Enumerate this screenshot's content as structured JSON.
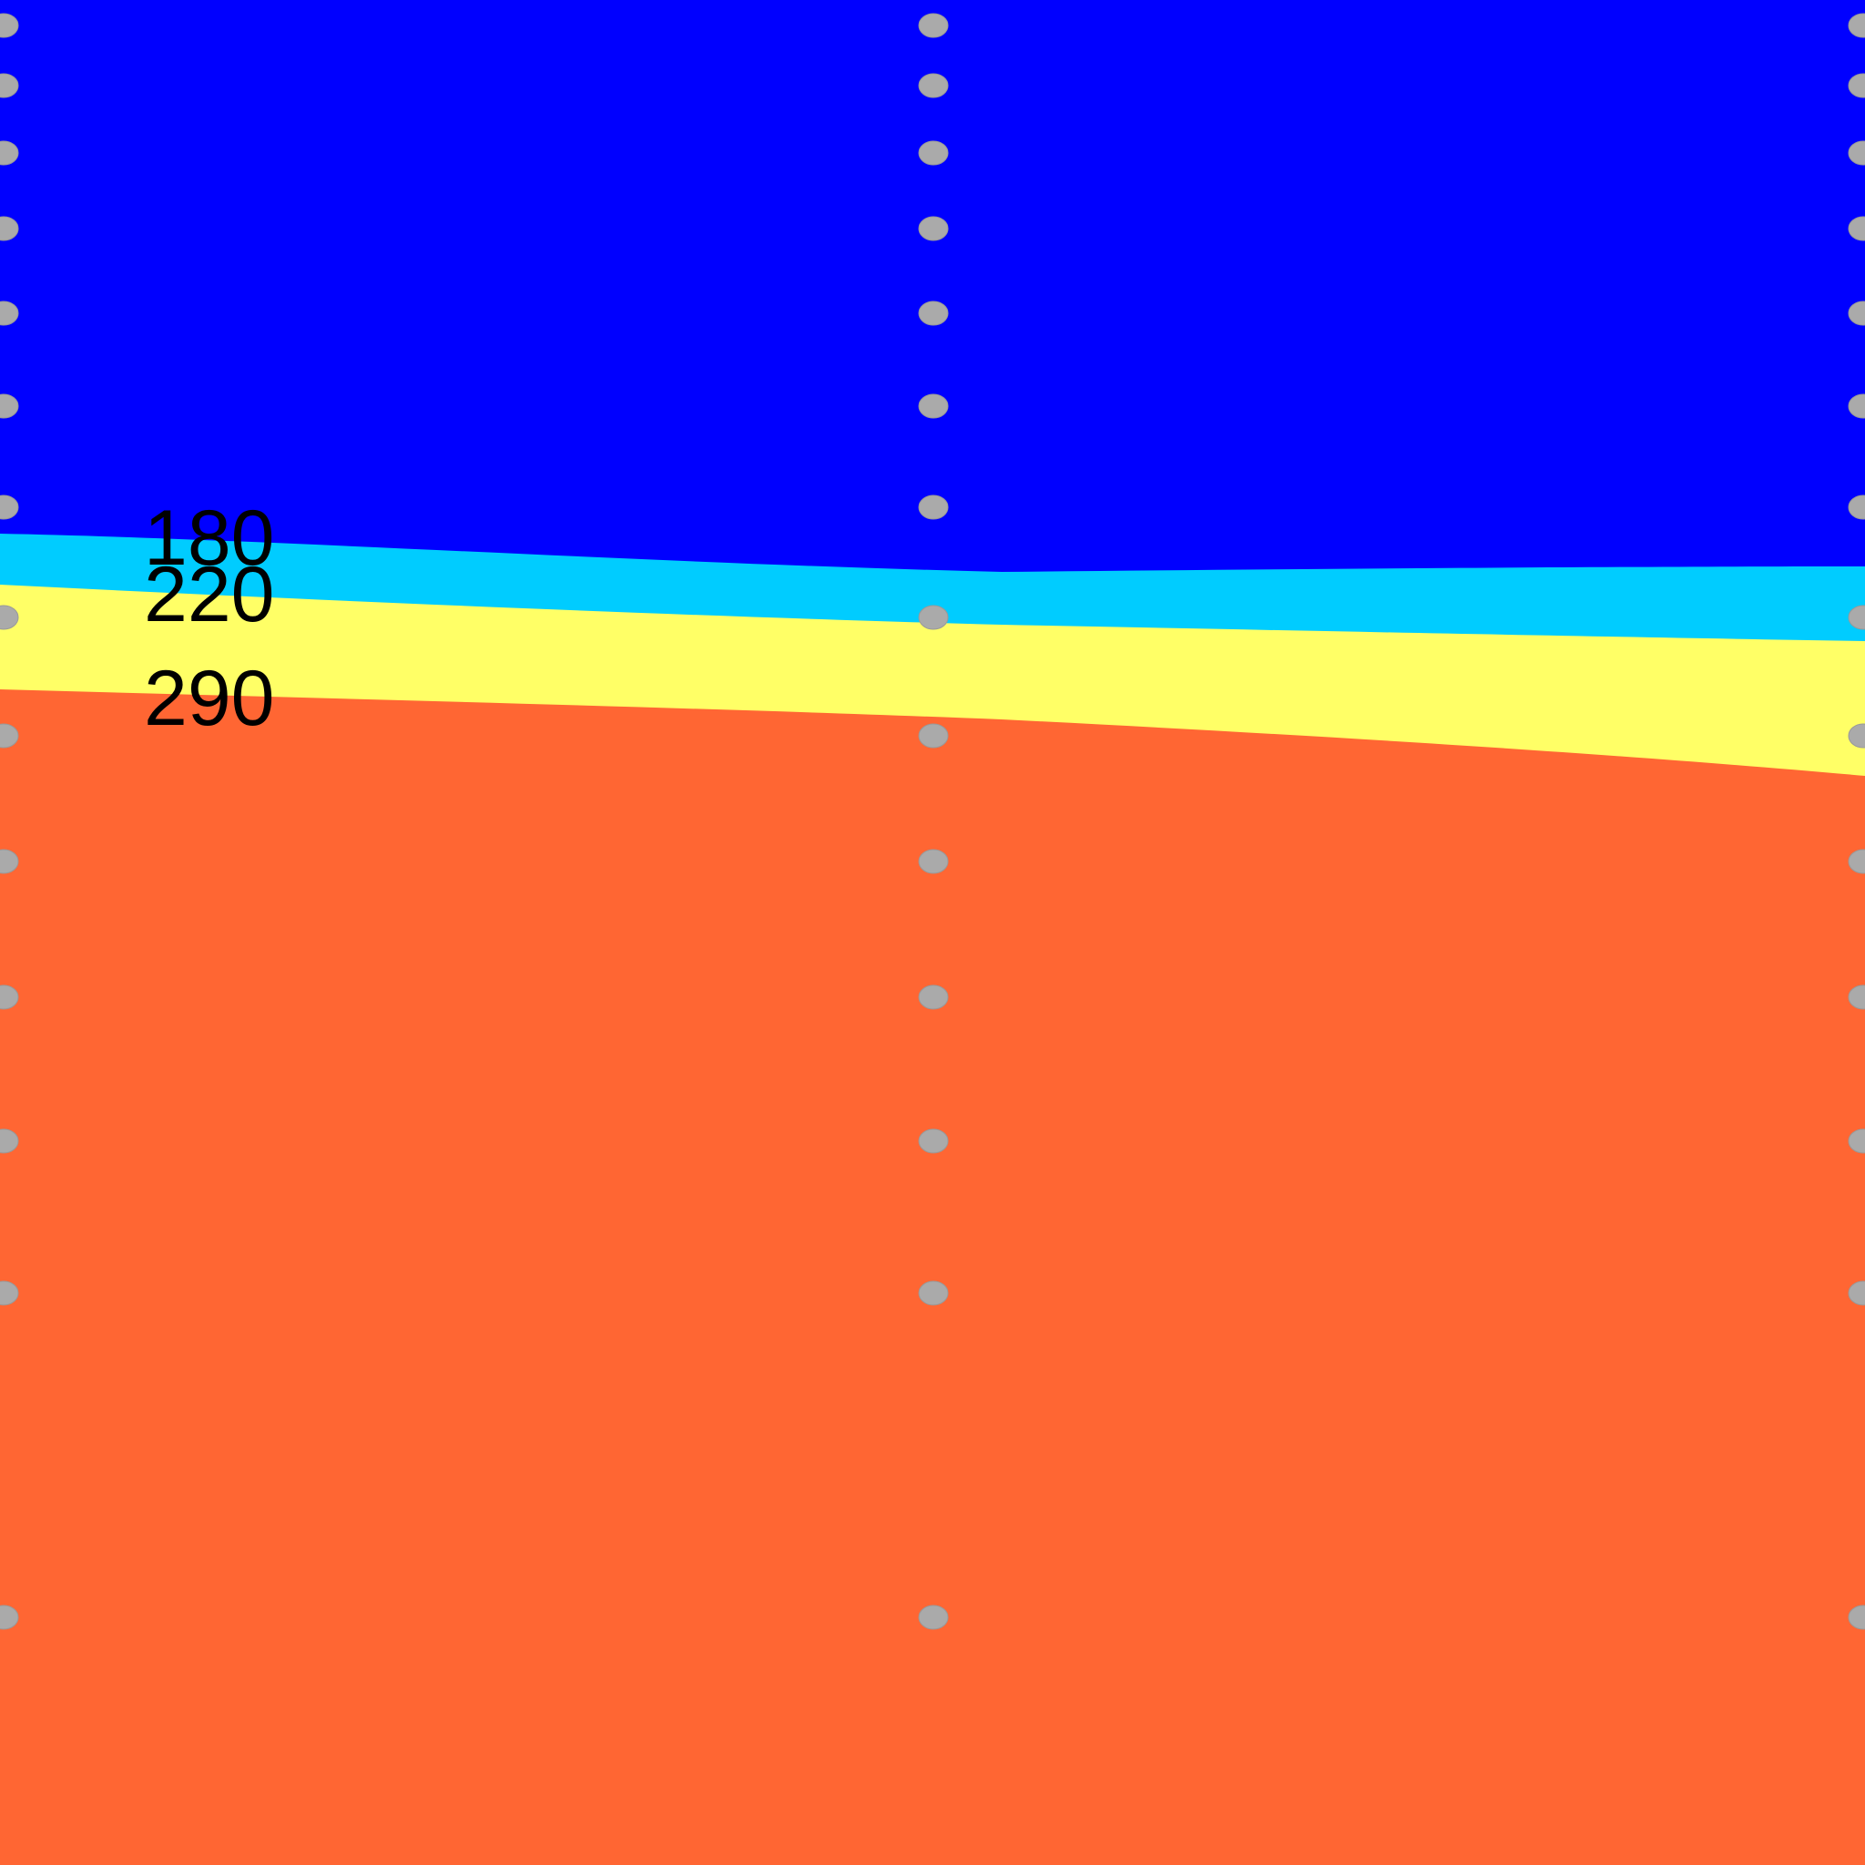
{
  "chart_data": {
    "type": "heatmap",
    "title": "",
    "xlabel": "",
    "ylabel": "",
    "contour_levels": [
      {
        "value": 180,
        "label": "180",
        "color_above": "#0000ff",
        "color_below": "#00ccff"
      },
      {
        "value": 220,
        "label": "220",
        "color_above": "#00ccff",
        "color_below": "#ffff66"
      },
      {
        "value": 290,
        "label": "290",
        "color_above": "#ffff66",
        "color_below": "#ff6633"
      }
    ],
    "band_colors": {
      "lowest": "#0000ff",
      "band_180_220": "#00ccff",
      "band_220_290": "#ffff66",
      "highest": "#ff6633"
    },
    "data_point_color": "#aaaaaa",
    "data_point_columns": 3,
    "data_point_rows": 14,
    "grid": false,
    "legend": "none"
  }
}
